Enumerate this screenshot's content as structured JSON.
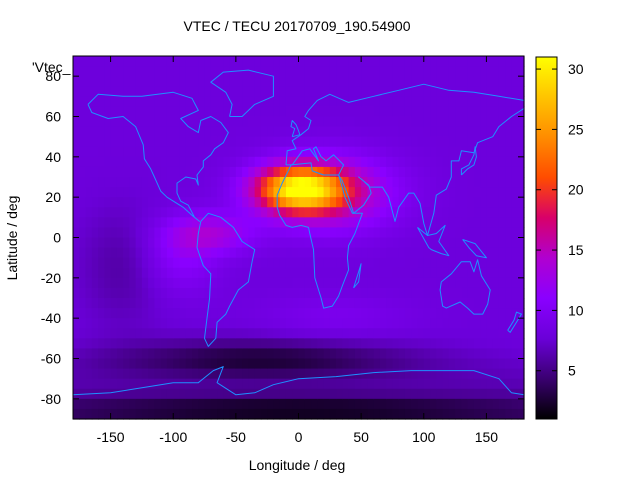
{
  "chart_data": {
    "type": "heatmap",
    "title": "VTEC / TECU 20170709_190.54900",
    "xlabel": "Longitude / deg",
    "ylabel": "Latitude / deg",
    "legend_key": "'Vtec_",
    "xlim": [
      -180,
      180
    ],
    "ylim": [
      -90,
      90
    ],
    "x_ticks": [
      -150,
      -100,
      -50,
      0,
      50,
      100,
      150
    ],
    "y_ticks": [
      -80,
      -60,
      -40,
      -20,
      0,
      20,
      40,
      60,
      80
    ],
    "colorbar": {
      "range": [
        1,
        31
      ],
      "ticks": [
        5,
        10,
        15,
        20,
        25,
        30
      ],
      "palette": [
        "#000000",
        "#3a0070",
        "#6a00d8",
        "#8a00ff",
        "#b000d0",
        "#d8006a",
        "#ff4c00",
        "#ff8c00",
        "#ffc400",
        "#ffff00"
      ]
    },
    "grid_step_deg": 5,
    "peak": {
      "lon": 0,
      "lat": 24,
      "value": 30
    },
    "coastline_color": "#1e90ff"
  }
}
